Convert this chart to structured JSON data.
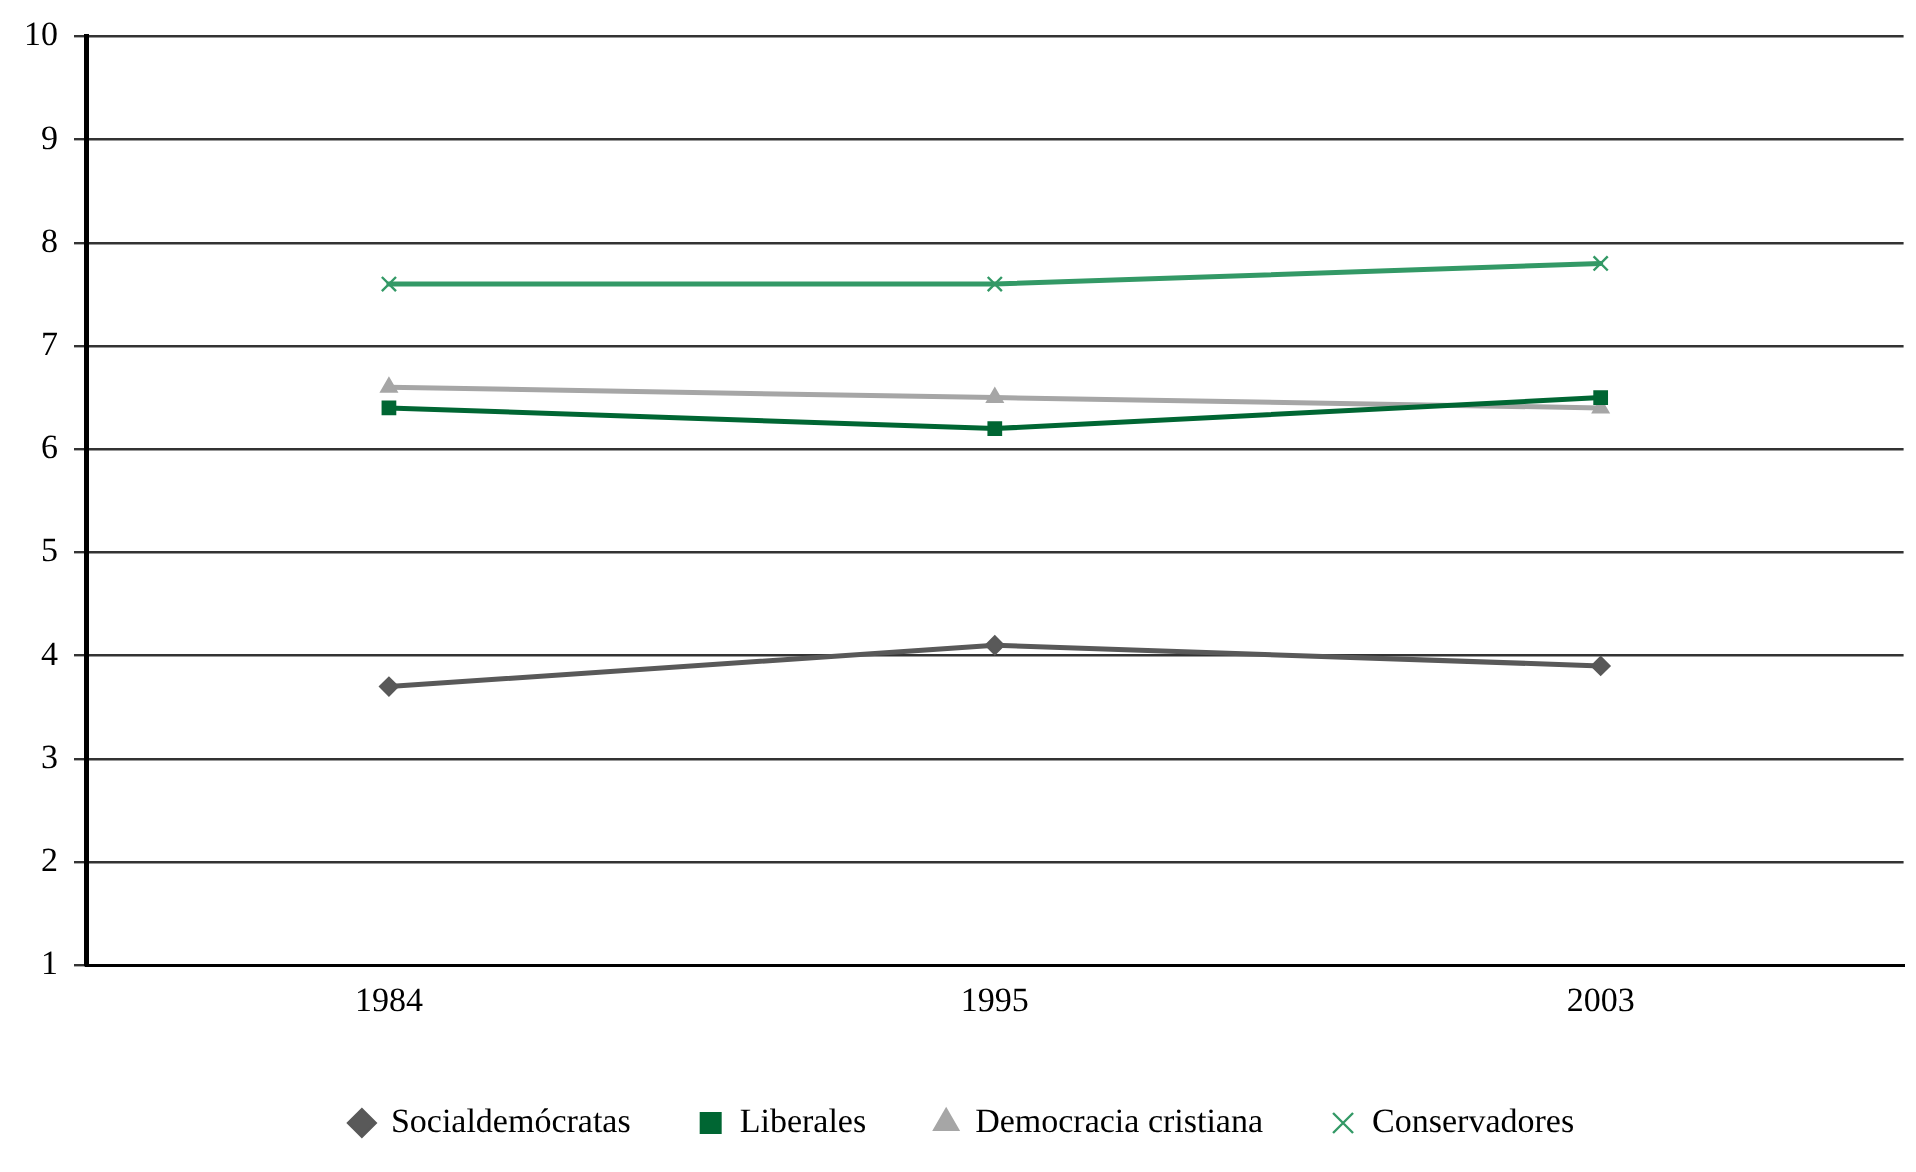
{
  "chart_data": {
    "type": "line",
    "categories": [
      "1984",
      "1995",
      "2003"
    ],
    "series": [
      {
        "name": "Socialdemócratas",
        "color": "#595959",
        "marker": "diamond",
        "values": [
          3.7,
          4.1,
          3.9
        ]
      },
      {
        "name": "Liberales",
        "color": "#006633",
        "marker": "square",
        "values": [
          6.4,
          6.2,
          6.5
        ]
      },
      {
        "name": "Democracia cristiana",
        "color": "#a6a6a6",
        "marker": "triangle",
        "values": [
          6.6,
          6.5,
          6.4
        ]
      },
      {
        "name": "Conservadores",
        "color": "#339966",
        "marker": "cross",
        "values": [
          7.6,
          7.6,
          7.8
        ]
      }
    ],
    "ylim": [
      1,
      10
    ],
    "yticks": [
      1,
      2,
      3,
      4,
      5,
      6,
      7,
      8,
      9,
      10
    ],
    "grid": "y",
    "legend": "bottom",
    "line_style": "solid"
  }
}
